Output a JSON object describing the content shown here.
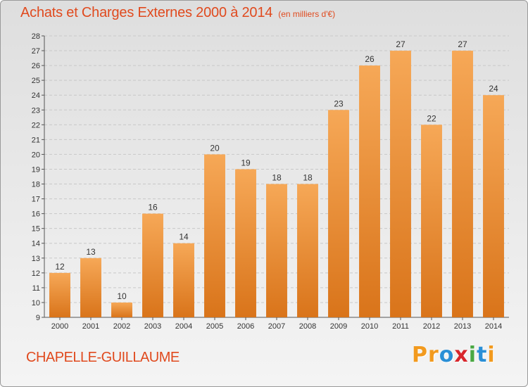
{
  "title": "Achats et Charges Externes 2000 à 2014",
  "subtitle": "(en milliers d'€)",
  "commune": "CHAPELLE-GUILLAUME",
  "logo": {
    "text": "Proxiti",
    "letters": [
      {
        "ch": "P",
        "color": "#f29a1e"
      },
      {
        "ch": "r",
        "color": "#f29a1e"
      },
      {
        "ch": "o",
        "color": "#2a8fd6"
      },
      {
        "ch": "x",
        "color": "#d8262c"
      },
      {
        "ch": "i",
        "color": "#4aa843"
      },
      {
        "ch": "t",
        "color": "#2a8fd6"
      },
      {
        "ch": "i",
        "color": "#f29a1e"
      }
    ]
  },
  "colors": {
    "title": "#e04a1e",
    "bar_light": "#f6a857",
    "bar_dark": "#d9741a",
    "grid": "#c8c8c8"
  },
  "chart_data": {
    "type": "bar",
    "title": "Achats et Charges Externes 2000 à 2014",
    "subtitle": "(en milliers d'€)",
    "categories": [
      "2000",
      "2001",
      "2002",
      "2003",
      "2004",
      "2005",
      "2006",
      "2007",
      "2008",
      "2009",
      "2010",
      "2011",
      "2012",
      "2013",
      "2014"
    ],
    "values": [
      12,
      13,
      10,
      16,
      14,
      20,
      19,
      18,
      18,
      23,
      26,
      27,
      22,
      27,
      24
    ],
    "xlabel": "",
    "ylabel": "",
    "ylim": [
      9,
      28
    ],
    "yticks": [
      9,
      10,
      11,
      12,
      13,
      14,
      15,
      16,
      17,
      18,
      19,
      20,
      21,
      22,
      23,
      24,
      25,
      26,
      27,
      28
    ],
    "grid": true,
    "legend": "none"
  }
}
